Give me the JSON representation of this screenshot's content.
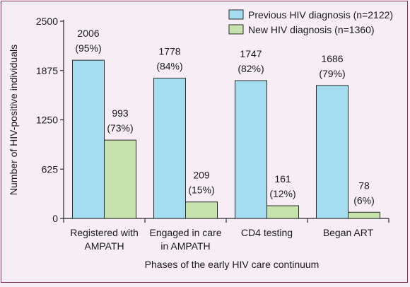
{
  "chart_data": {
    "type": "bar",
    "categories": [
      [
        "Registered with",
        "AMPATH"
      ],
      [
        "Engaged in care",
        "in AMPATH"
      ],
      [
        "CD4 testing"
      ],
      [
        "Began ART"
      ]
    ],
    "series": [
      {
        "name": "Previous HIV diagnosis (n=2122)",
        "color": "#a6dcef",
        "values": [
          2006,
          1778,
          1747,
          1686
        ],
        "labels": [
          "2006",
          "1778",
          "1747",
          "1686"
        ],
        "percents": [
          "(95%)",
          "(84%)",
          "(82%)",
          "(79%)"
        ]
      },
      {
        "name": "New HIV diagnosis (n=1360)",
        "color": "#c6e3ad",
        "values": [
          993,
          209,
          161,
          78
        ],
        "labels": [
          "993",
          "209",
          "161",
          "78"
        ],
        "percents": [
          "(73%)",
          "(15%)",
          "(12%)",
          "(6%)"
        ]
      }
    ],
    "xlabel": "Phases of the early HIV care continuum",
    "ylabel": "Number of HIV-positive individuals",
    "ylim": [
      0,
      2500
    ],
    "yticks": [
      0,
      625,
      1250,
      1875,
      2500
    ],
    "ytick_labels": [
      "0",
      "625",
      "1250",
      "1875",
      "2500"
    ],
    "legend_position": "top-right",
    "grid": false
  }
}
